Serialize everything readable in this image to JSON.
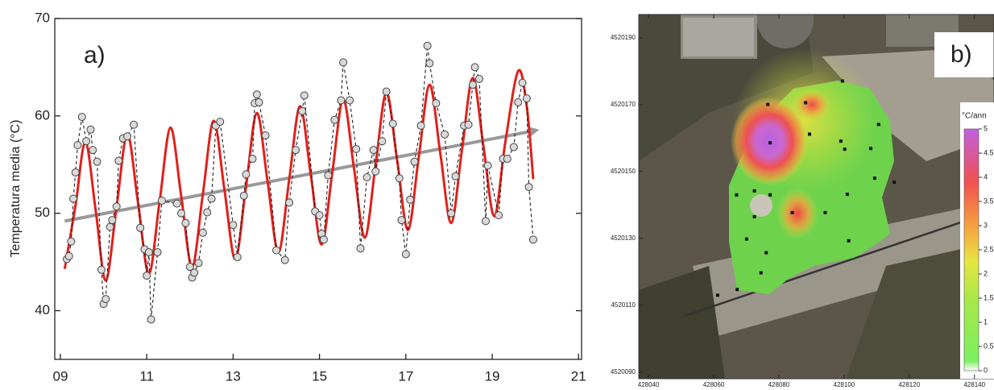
{
  "chart_data": [
    {
      "type": "line",
      "panel_label": "a)",
      "y_label": "Temperatura media (°C)",
      "xlim": [
        8.87,
        21.07
      ],
      "ylim": [
        35,
        70
      ],
      "xticks": [
        {
          "value": 9,
          "label": "09"
        },
        11,
        13,
        15,
        17,
        19,
        21
      ],
      "yticks": [
        40,
        50,
        60,
        70
      ],
      "series": [
        {
          "color": "#999999",
          "arrow": true,
          "x": [
            9.1,
            20.0
          ],
          "values": [
            49.2,
            58.5
          ]
        },
        {
          "color": "#e0201b",
          "smooth": true,
          "x": [
            9.1,
            9.35,
            9.58,
            9.82,
            10.05,
            10.3,
            10.55,
            10.8,
            11.05,
            11.3,
            11.55,
            11.8,
            12.05,
            12.3,
            12.55,
            12.8,
            13.05,
            13.3,
            13.55,
            13.8,
            14.05,
            14.3,
            14.55,
            14.8,
            15.05,
            15.3,
            15.55,
            15.8,
            16.05,
            16.3,
            16.55,
            16.8,
            17.05,
            17.3,
            17.55,
            17.8,
            18.05,
            18.3,
            18.55,
            18.8,
            19.05,
            19.3,
            19.6,
            19.8,
            19.95
          ],
          "values": [
            44.3,
            50.8,
            57.3,
            50.2,
            43.1,
            50.6,
            58.1,
            51.0,
            43.8,
            51.3,
            58.8,
            51.7,
            44.5,
            52.0,
            59.5,
            52.4,
            45.3,
            52.8,
            60.3,
            53.2,
            46.0,
            53.5,
            61.0,
            53.9,
            46.8,
            54.3,
            61.7,
            54.6,
            47.5,
            55.0,
            62.4,
            55.4,
            48.3,
            55.8,
            63.2,
            56.1,
            49.0,
            56.5,
            63.9,
            56.8,
            49.7,
            57.2,
            64.6,
            61.0,
            53.5
          ]
        },
        {
          "color": "#222222",
          "line": "dashed",
          "marker": "circle",
          "marker_color": "#d9d9d9",
          "x": [
            9.15,
            9.2,
            9.25,
            9.3,
            9.35,
            9.4,
            9.5,
            9.6,
            9.7,
            9.75,
            9.85,
            9.95,
            10.0,
            10.05,
            10.15,
            10.2,
            10.3,
            10.35,
            10.45,
            10.55,
            10.7,
            10.85,
            10.95,
            11.0,
            11.05,
            11.1,
            11.25,
            11.35,
            11.7,
            11.8,
            11.9,
            12.0,
            12.05,
            12.1,
            12.2,
            12.3,
            12.4,
            12.5,
            12.6,
            12.7,
            13.0,
            13.1,
            13.25,
            13.3,
            13.45,
            13.5,
            13.55,
            13.6,
            13.75,
            14.0,
            14.2,
            14.3,
            14.45,
            14.6,
            14.65,
            14.9,
            15.0,
            15.05,
            15.1,
            15.2,
            15.35,
            15.5,
            15.55,
            15.7,
            15.85,
            15.95,
            16.1,
            16.25,
            16.3,
            16.45,
            16.55,
            16.7,
            16.85,
            16.9,
            17.0,
            17.1,
            17.2,
            17.35,
            17.5,
            17.55,
            17.7,
            17.9,
            18.05,
            18.15,
            18.35,
            18.45,
            18.55,
            18.6,
            18.7,
            18.85,
            18.9,
            19.15,
            19.25,
            19.35,
            19.5,
            19.6,
            19.7,
            19.8,
            19.85,
            19.95
          ],
          "values": [
            45.3,
            45.6,
            47.1,
            51.5,
            54.2,
            57.0,
            59.9,
            57.4,
            58.6,
            56.5,
            55.3,
            44.2,
            40.7,
            41.2,
            48.6,
            49.3,
            50.7,
            55.4,
            57.7,
            57.9,
            59.1,
            48.5,
            46.3,
            43.6,
            46.0,
            39.1,
            46.0,
            51.3,
            51.0,
            50.0,
            49.0,
            44.5,
            43.4,
            43.9,
            44.9,
            48.0,
            50.1,
            51.5,
            59.0,
            59.4,
            48.8,
            45.5,
            51.8,
            54.0,
            55.6,
            61.3,
            62.2,
            61.4,
            58.0,
            46.2,
            45.2,
            51.1,
            56.5,
            60.5,
            62.1,
            50.2,
            49.8,
            47.9,
            47.3,
            53.9,
            59.6,
            61.6,
            65.5,
            61.6,
            56.6,
            46.4,
            53.7,
            56.5,
            54.3,
            57.4,
            62.5,
            59.2,
            53.6,
            49.3,
            45.8,
            51.4,
            55.3,
            59.0,
            67.2,
            65.4,
            61.3,
            58.1,
            50.0,
            53.8,
            59.0,
            59.1,
            63.2,
            65.0,
            63.8,
            49.2,
            54.9,
            49.8,
            55.6,
            55.6,
            56.8,
            61.4,
            63.4,
            61.8,
            52.7,
            47.3
          ]
        }
      ]
    },
    {
      "type": "map",
      "panel_label": "b)",
      "xlim": [
        428037,
        428146
      ],
      "ylim": [
        4520088,
        4520197
      ],
      "xticks": [
        428040,
        428060,
        428080,
        428100,
        428120,
        428140
      ],
      "yticks": [
        4520090,
        4520110,
        4520130,
        4520150,
        4520170,
        4520190
      ],
      "points": {
        "color": "#111111",
        "x": [
          428099.5,
          428076.6,
          428088.2,
          428110.6,
          428089.4,
          428077.3,
          428099.0,
          428100.2,
          428108.2,
          428109.4,
          428115.4,
          428067.0,
          428072.5,
          428077.3,
          428101.0,
          428072.5,
          428084.1,
          428094.2,
          428070.1,
          428101.4,
          428067.2,
          428074.5,
          428076.1,
          428061.2
        ],
        "y": [
          4520177.1,
          4520170.1,
          4520170.6,
          4520164.1,
          4520161.2,
          4520158.6,
          4520159.1,
          4520156.7,
          4520156.9,
          4520148.0,
          4520146.8,
          4520143.0,
          4520144.2,
          4520143.0,
          4520143.2,
          4520136.5,
          4520137.7,
          4520137.7,
          4520129.8,
          4520129.3,
          4520114.7,
          4520119.7,
          4520125.7,
          4520113.0
        ]
      },
      "colorbar": {
        "title": "°C/ann",
        "lim": [
          0,
          5
        ],
        "ticks": [
          0,
          0.5,
          1,
          1.5,
          2,
          2.5,
          3,
          3.5,
          4,
          4.5,
          5
        ]
      }
    }
  ]
}
